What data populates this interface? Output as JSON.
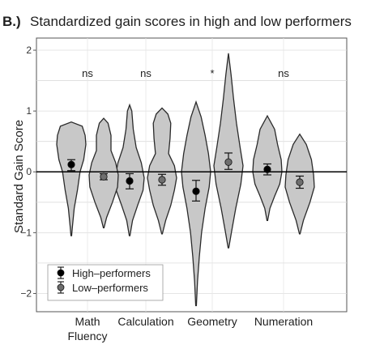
{
  "chart_data": {
    "type": "violin",
    "panel_label": "B.)",
    "title": "Standardized gain scores in high and low performers",
    "ylabel": "Standard Gain Score",
    "xlabel": "",
    "ylim": [
      -2.3,
      2.2
    ],
    "yticks": [
      -2,
      -1,
      0,
      1,
      2
    ],
    "ytick_labels": [
      "−2",
      "−1",
      "0",
      "1",
      "2"
    ],
    "grid": true,
    "zero_line": true,
    "legend_position": "bottom-left",
    "categories": [
      "Math Fluency",
      "Calculation",
      "Geometry",
      "Numeration"
    ],
    "category_labels": [
      {
        "lines": [
          "Math",
          "Fluency"
        ]
      },
      {
        "lines": [
          "Calculation"
        ]
      },
      {
        "lines": [
          "Geometry"
        ]
      },
      {
        "lines": [
          "Numeration"
        ]
      }
    ],
    "significance": [
      "ns",
      "ns",
      "*",
      "ns"
    ],
    "series": [
      {
        "name": "High–performers",
        "color": "#c8c8c8",
        "marker_color": "#000000",
        "means": [
          0.12,
          -0.15,
          -0.32,
          0.04
        ],
        "ci_low": [
          0.02,
          -0.28,
          -0.48,
          -0.05
        ],
        "ci_high": [
          0.2,
          -0.03,
          -0.14,
          0.13
        ],
        "violins": [
          {
            "min": -1.05,
            "max": 0.82,
            "profile": [
              [
                -1.05,
                0.02
              ],
              [
                -0.9,
                0.08
              ],
              [
                -0.6,
                0.2
              ],
              [
                -0.3,
                0.42
              ],
              [
                0,
                0.6
              ],
              [
                0.2,
                0.85
              ],
              [
                0.45,
                1
              ],
              [
                0.6,
                0.95
              ],
              [
                0.75,
                0.75
              ],
              [
                0.82,
                0.0
              ]
            ]
          },
          {
            "min": -1.05,
            "max": 1.1,
            "profile": [
              [
                -1.05,
                0.02
              ],
              [
                -0.8,
                0.2
              ],
              [
                -0.55,
                0.55
              ],
              [
                -0.3,
                0.92
              ],
              [
                -0.1,
                1
              ],
              [
                0.15,
                0.8
              ],
              [
                0.4,
                0.45
              ],
              [
                0.7,
                0.25
              ],
              [
                1.0,
                0.15
              ],
              [
                1.1,
                0.0
              ]
            ]
          },
          {
            "min": -2.2,
            "max": 1.15,
            "profile": [
              [
                -2.2,
                0.02
              ],
              [
                -1.8,
                0.1
              ],
              [
                -1.4,
                0.22
              ],
              [
                -1.0,
                0.38
              ],
              [
                -0.6,
                0.62
              ],
              [
                -0.25,
                0.9
              ],
              [
                0.0,
                1
              ],
              [
                0.3,
                0.85
              ],
              [
                0.6,
                0.62
              ],
              [
                0.9,
                0.35
              ],
              [
                1.15,
                0.0
              ]
            ]
          },
          {
            "min": -0.8,
            "max": 0.92,
            "profile": [
              [
                -0.8,
                0.02
              ],
              [
                -0.6,
                0.18
              ],
              [
                -0.4,
                0.5
              ],
              [
                -0.2,
                0.85
              ],
              [
                0,
                1
              ],
              [
                0.2,
                0.95
              ],
              [
                0.45,
                0.7
              ],
              [
                0.7,
                0.5
              ],
              [
                0.92,
                0.0
              ]
            ]
          }
        ]
      },
      {
        "name": "Low–performers",
        "color": "#c8c8c8",
        "marker_color": "#6e6e6e",
        "means": [
          -0.08,
          -0.13,
          0.16,
          -0.17
        ],
        "ci_low": [
          -0.13,
          -0.22,
          0.04,
          -0.27
        ],
        "ci_high": [
          -0.03,
          -0.04,
          0.31,
          -0.07
        ],
        "violins": [
          {
            "min": -0.92,
            "max": 0.88,
            "profile": [
              [
                -0.92,
                0.02
              ],
              [
                -0.75,
                0.2
              ],
              [
                -0.5,
                0.6
              ],
              [
                -0.25,
                0.95
              ],
              [
                -0.05,
                1
              ],
              [
                0.15,
                0.82
              ],
              [
                0.35,
                0.5
              ],
              [
                0.6,
                0.5
              ],
              [
                0.8,
                0.3
              ],
              [
                0.88,
                0.0
              ]
            ]
          },
          {
            "min": -1.02,
            "max": 1.05,
            "profile": [
              [
                -1.02,
                0.02
              ],
              [
                -0.8,
                0.25
              ],
              [
                -0.55,
                0.6
              ],
              [
                -0.3,
                0.85
              ],
              [
                -0.1,
                1
              ],
              [
                0.1,
                0.85
              ],
              [
                0.3,
                0.45
              ],
              [
                0.55,
                0.55
              ],
              [
                0.8,
                0.6
              ],
              [
                0.95,
                0.4
              ],
              [
                1.05,
                0.0
              ]
            ]
          },
          {
            "min": -1.25,
            "max": 1.95,
            "profile": [
              [
                -1.25,
                0.02
              ],
              [
                -1.0,
                0.2
              ],
              [
                -0.6,
                0.5
              ],
              [
                -0.2,
                0.85
              ],
              [
                0.1,
                1
              ],
              [
                0.4,
                0.8
              ],
              [
                0.8,
                0.55
              ],
              [
                1.2,
                0.35
              ],
              [
                1.6,
                0.18
              ],
              [
                1.95,
                0.0
              ]
            ]
          },
          {
            "min": -1.02,
            "max": 0.62,
            "profile": [
              [
                -1.02,
                0.02
              ],
              [
                -0.8,
                0.25
              ],
              [
                -0.5,
                0.7
              ],
              [
                -0.25,
                1
              ],
              [
                -0.05,
                0.95
              ],
              [
                0.2,
                0.8
              ],
              [
                0.45,
                0.45
              ],
              [
                0.62,
                0.0
              ]
            ]
          }
        ]
      }
    ]
  }
}
